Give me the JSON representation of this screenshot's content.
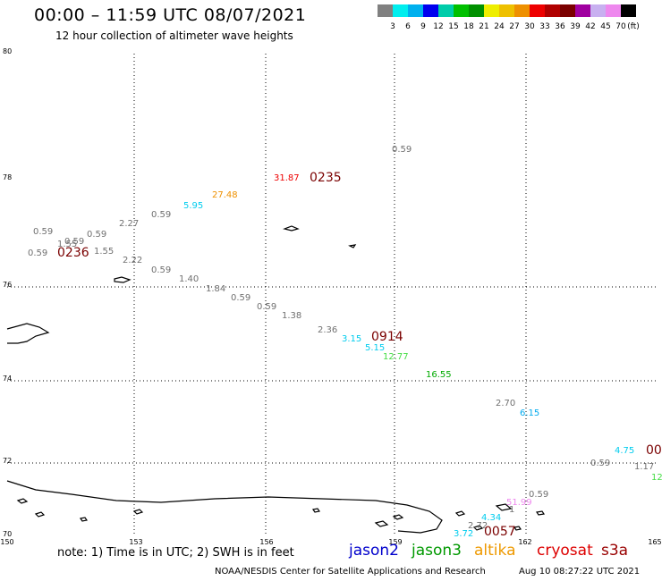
{
  "header": {
    "title": "00:00 – 11:59 UTC 08/07/2021",
    "subtitle": "12 hour collection of altimeter wave heights"
  },
  "legend": {
    "colors": [
      "#808080",
      "#00eeee",
      "#00b0ee",
      "#0000ee",
      "#00ccaa",
      "#00c000",
      "#009000",
      "#eeee00",
      "#eec000",
      "#ee9000",
      "#ee0000",
      "#b00000",
      "#7a0000",
      "#a000a0",
      "#c8b0f0",
      "#ee88ee",
      "#000000"
    ],
    "labels": [
      "3",
      "6",
      "9",
      "12",
      "15",
      "18",
      "21",
      "24",
      "27",
      "30",
      "33",
      "36",
      "39",
      "42",
      "45",
      "70"
    ],
    "unit": "(ft)"
  },
  "axes": {
    "lat_labels": [
      "80",
      "78",
      "76",
      "74",
      "72",
      "70"
    ],
    "lon_labels": [
      "150",
      "153",
      "156",
      "159",
      "162",
      "165"
    ]
  },
  "observations": [
    {
      "text": "0.59",
      "color": "#707070"
    },
    {
      "text": "31.87",
      "color": "#ee0000"
    },
    {
      "text": "0235",
      "color": "#7a0000"
    },
    {
      "text": "27.48",
      "color": "#ee9000"
    },
    {
      "text": "5.95",
      "color": "#00ccee"
    },
    {
      "text": "0.59",
      "color": "#707070"
    },
    {
      "text": "2.27",
      "color": "#707070"
    },
    {
      "text": "0.59",
      "color": "#707070"
    },
    {
      "text": "0.59",
      "color": "#707070"
    },
    {
      "text": "0.59",
      "color": "#707070"
    },
    {
      "text": "1.55",
      "color": "#707070"
    },
    {
      "text": "1.55",
      "color": "#707070"
    },
    {
      "text": "0.59",
      "color": "#707070"
    },
    {
      "text": "0236",
      "color": "#7a0000"
    },
    {
      "text": "2.22",
      "color": "#707070"
    },
    {
      "text": "0.59",
      "color": "#707070"
    },
    {
      "text": "1.40",
      "color": "#707070"
    },
    {
      "text": "1.84",
      "color": "#707070"
    },
    {
      "text": "0.59",
      "color": "#707070"
    },
    {
      "text": "0.59",
      "color": "#707070"
    },
    {
      "text": "1.38",
      "color": "#707070"
    },
    {
      "text": "2.36",
      "color": "#707070"
    },
    {
      "text": "3.15",
      "color": "#00ccee"
    },
    {
      "text": "0914",
      "color": "#7a0000"
    },
    {
      "text": "5.15",
      "color": "#00ccee"
    },
    {
      "text": "12.77",
      "color": "#44dd44"
    },
    {
      "text": "16.55",
      "color": "#00aa00"
    },
    {
      "text": "2.70",
      "color": "#707070"
    },
    {
      "text": "6.15",
      "color": "#00aaee"
    },
    {
      "text": "4.75",
      "color": "#00ccee"
    },
    {
      "text": "00",
      "color": "#7a0000"
    },
    {
      "text": "0.59",
      "color": "#707070"
    },
    {
      "text": "1.17",
      "color": "#707070"
    },
    {
      "text": "12",
      "color": "#44dd44"
    },
    {
      "text": "0.59",
      "color": "#707070"
    },
    {
      "text": "51.99",
      "color": "#ee88ee"
    },
    {
      "text": "1",
      "color": "#707070"
    },
    {
      "text": "4.34",
      "color": "#00ccee"
    },
    {
      "text": "2.72",
      "color": "#707070"
    },
    {
      "text": "3.72",
      "color": "#00ccee"
    },
    {
      "text": "0057",
      "color": "#7a0000"
    }
  ],
  "footer": {
    "note": "note: 1) Time is in UTC; 2) SWH is in feet",
    "satellites": [
      {
        "name": "jason2",
        "color": "#0000cc"
      },
      {
        "name": "jason3",
        "color": "#009900"
      },
      {
        "name": "altika",
        "color": "#ee9900"
      },
      {
        "name": "cryosat",
        "color": "#dd0000"
      },
      {
        "name": "s3a",
        "color": "#990000"
      }
    ],
    "credit": "NOAA/NESDIS Center for Satellite Applications and Research",
    "timestamp": "Aug 10 08:27:22 UTC 2021"
  }
}
